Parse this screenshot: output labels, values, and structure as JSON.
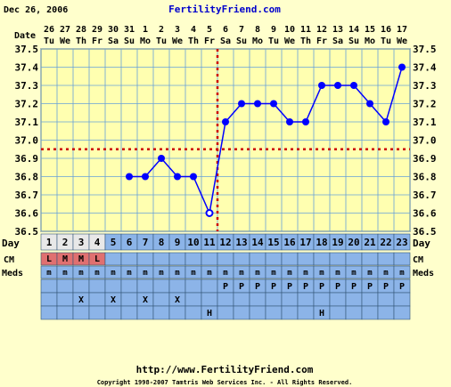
{
  "header": {
    "date": "Dec 26, 2006",
    "site": "FertilityFriend.com"
  },
  "footer": {
    "url": "http://www.FertilityFriend.com",
    "copyright": "Copyright 1998-2007 Tamtris Web Services Inc. - All Rights Reserved."
  },
  "row_labels": {
    "date": "Date",
    "day": "Day",
    "cm": "CM",
    "meds": "Meds"
  },
  "columns": {
    "dates": [
      "26",
      "27",
      "28",
      "29",
      "30",
      "31",
      "1",
      "2",
      "3",
      "4",
      "5",
      "6",
      "7",
      "8",
      "9",
      "10",
      "11",
      "12",
      "13",
      "14",
      "15",
      "16",
      "17"
    ],
    "weekdays": [
      "Tu",
      "We",
      "Th",
      "Fr",
      "Sa",
      "Su",
      "Mo",
      "Tu",
      "We",
      "Th",
      "Fr",
      "Sa",
      "Su",
      "Mo",
      "Tu",
      "We",
      "Th",
      "Fr",
      "Sa",
      "Su",
      "Mo",
      "Tu",
      "We"
    ],
    "days": [
      "1",
      "2",
      "3",
      "4",
      "5",
      "6",
      "7",
      "8",
      "9",
      "10",
      "11",
      "12",
      "13",
      "14",
      "15",
      "16",
      "17",
      "18",
      "19",
      "20",
      "21",
      "22",
      "23"
    ],
    "cm": [
      "L",
      "M",
      "M",
      "L",
      "",
      "",
      "",
      "",
      "",
      "",
      "",
      "",
      "",
      "",
      "",
      "",
      "",
      "",
      "",
      "",
      "",
      "",
      ""
    ],
    "meds": [
      "m",
      "m",
      "m",
      "m",
      "m",
      "m",
      "m",
      "m",
      "m",
      "m",
      "m",
      "m",
      "m",
      "m",
      "m",
      "m",
      "m",
      "m",
      "m",
      "m",
      "m",
      "m",
      "m"
    ],
    "row_p": [
      "",
      "",
      "",
      "",
      "",
      "",
      "",
      "",
      "",
      "",
      "",
      "P",
      "P",
      "P",
      "P",
      "P",
      "P",
      "P",
      "P",
      "P",
      "P",
      "P",
      "P"
    ],
    "row_x": [
      "",
      "",
      "X",
      "",
      "X",
      "",
      "X",
      "",
      "X",
      "",
      "",
      "",
      "",
      "",
      "",
      "",
      "",
      "",
      "",
      "",
      "",
      "",
      ""
    ],
    "row_h": [
      "",
      "",
      "",
      "",
      "",
      "",
      "",
      "",
      "",
      "",
      "H",
      "",
      "",
      "",
      "",
      "",
      "",
      "H",
      "",
      "",
      "",
      "",
      ""
    ]
  },
  "chart_data": {
    "type": "line",
    "x": [
      "26",
      "27",
      "28",
      "29",
      "30",
      "31",
      "1",
      "2",
      "3",
      "4",
      "5",
      "6",
      "7",
      "8",
      "9",
      "10",
      "11",
      "12",
      "13",
      "14",
      "15",
      "16",
      "17"
    ],
    "series": [
      {
        "values": [
          null,
          null,
          null,
          null,
          null,
          36.8,
          36.8,
          36.9,
          36.8,
          36.8,
          36.6,
          37.1,
          37.2,
          37.2,
          37.2,
          37.1,
          37.1,
          37.3,
          37.3,
          37.3,
          37.2,
          37.1,
          37.4
        ]
      }
    ],
    "ylim": [
      36.5,
      37.5
    ],
    "y_ticks": [
      "36.5",
      "36.6",
      "36.7",
      "36.8",
      "36.9",
      "37.0",
      "37.1",
      "37.2",
      "37.3",
      "37.4",
      "37.5"
    ],
    "coverline": 36.95,
    "ovulation_day_index": 10,
    "colors": {
      "line": "#0000ff",
      "marker": "#0000ff",
      "reference": "#cc0000",
      "grid": "#66a0d8",
      "plot_bg": "#ffffb0",
      "table_bg": "#8cb4e8",
      "cm_bg": "#e07070"
    },
    "grid": true
  }
}
